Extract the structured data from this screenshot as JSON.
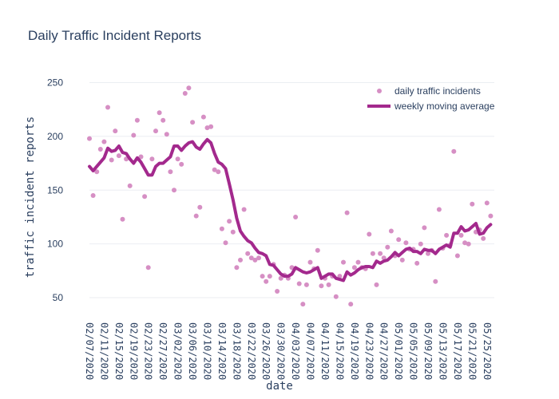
{
  "chart_data": {
    "type": "scatter",
    "title": "Daily Traffic Incident Reports",
    "xlabel": "date",
    "ylabel": "traffic incident reports",
    "x_start": "2020-02-07",
    "x_end": "2020-05-27",
    "ylim": [
      30,
      260
    ],
    "yticks": [
      50,
      100,
      150,
      200,
      250
    ],
    "xticks": [
      "02/07/2020",
      "02/11/2020",
      "02/15/2020",
      "02/19/2020",
      "02/23/2020",
      "02/27/2020",
      "03/02/2020",
      "03/06/2020",
      "03/10/2020",
      "03/14/2020",
      "03/18/2020",
      "03/22/2020",
      "03/26/2020",
      "03/30/2020",
      "04/03/2020",
      "04/07/2020",
      "04/11/2020",
      "04/15/2020",
      "04/19/2020",
      "04/23/2020",
      "04/27/2020",
      "05/01/2020",
      "05/05/2020",
      "05/09/2020",
      "05/13/2020",
      "05/17/2020",
      "05/21/2020",
      "05/25/2020"
    ],
    "grid": "horizontal",
    "legend_position": "top-right",
    "series": [
      {
        "name": "daily traffic incidents",
        "mode": "markers",
        "color": "#d68fc4",
        "values": [
          198,
          145,
          167,
          188,
          195,
          227,
          178,
          205,
          182,
          123,
          179,
          154,
          201,
          215,
          181,
          144,
          78,
          179,
          205,
          222,
          215,
          202,
          167,
          150,
          179,
          174,
          240,
          245,
          213,
          126,
          134,
          218,
          208,
          209,
          169,
          167,
          114,
          101,
          121,
          111,
          78,
          85,
          132,
          91,
          87,
          85,
          87,
          70,
          65,
          70,
          81,
          56,
          68,
          71,
          68,
          78,
          125,
          63,
          44,
          62,
          83,
          77,
          94,
          61,
          68,
          62,
          70,
          51,
          70,
          83,
          129,
          44,
          78,
          83,
          78,
          77,
          109,
          91,
          62,
          91,
          87,
          97,
          112,
          89,
          104,
          85,
          101,
          95,
          95,
          82,
          100,
          115,
          91,
          94,
          65,
          132,
          96,
          108,
          99,
          186,
          89,
          108,
          101,
          100,
          137,
          111,
          113,
          105,
          138,
          126
        ],
        "values_note": ""
      },
      {
        "name": "weekly moving average",
        "mode": "lines",
        "color": "#a3298d",
        "values": [
          172,
          168,
          172,
          176,
          180,
          189,
          186,
          187,
          191,
          185,
          184,
          179,
          175,
          180,
          176,
          170,
          164,
          164,
          172,
          175,
          175,
          178,
          181,
          191,
          191,
          187,
          191,
          194,
          195,
          190,
          188,
          193,
          197,
          194,
          184,
          176,
          174,
          170,
          156,
          141,
          124,
          112,
          107,
          103,
          101,
          96,
          92,
          91,
          89,
          81,
          80,
          76,
          72,
          70,
          70,
          72,
          78,
          76,
          74,
          73,
          74,
          76,
          78,
          68,
          70,
          72,
          72,
          68,
          67,
          66,
          74,
          71,
          73,
          76,
          78,
          79,
          79,
          78,
          84,
          82,
          84,
          85,
          88,
          92,
          89,
          92,
          95,
          96,
          93,
          93,
          91,
          95,
          94,
          94,
          91,
          95,
          97,
          99,
          97,
          110,
          110,
          116,
          112,
          113,
          116,
          119,
          109,
          110,
          115,
          118
        ]
      }
    ]
  }
}
